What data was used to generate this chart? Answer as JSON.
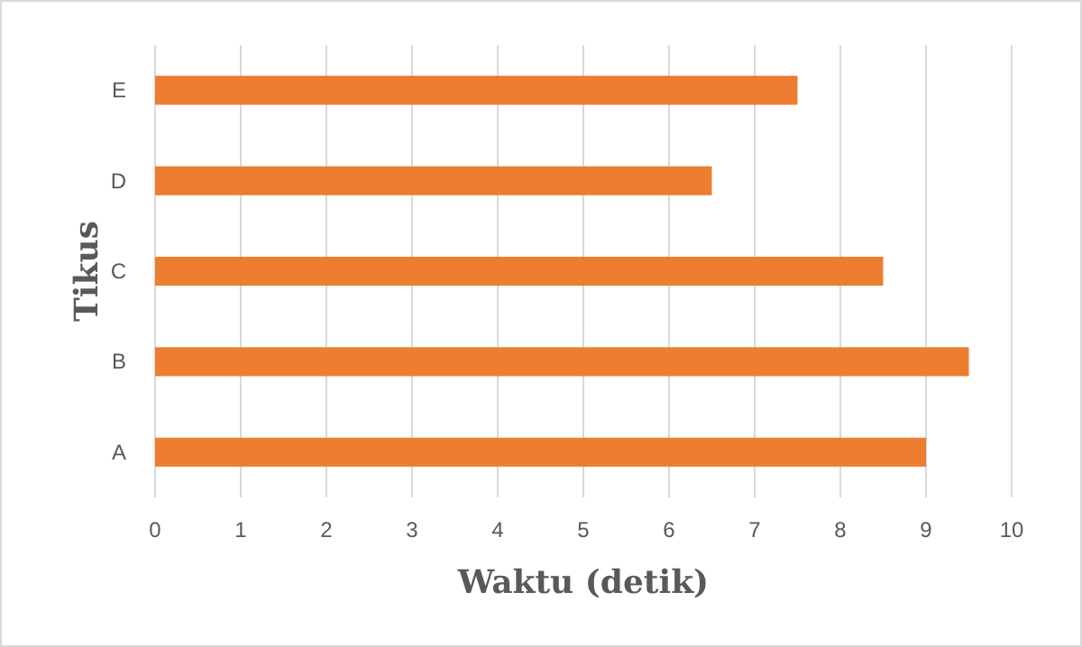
{
  "chart_data": {
    "type": "bar",
    "orientation": "horizontal",
    "xlabel": "Waktu (detik)",
    "ylabel": "Tikus",
    "categories": [
      "E",
      "D",
      "C",
      "B",
      "A"
    ],
    "values": [
      7.5,
      6.5,
      8.5,
      9.5,
      9
    ],
    "color": "#ed7d31",
    "xlim": [
      0,
      10
    ],
    "xticks": [
      0,
      1,
      2,
      3,
      4,
      5,
      6,
      7,
      8,
      9,
      10
    ],
    "grid": "x"
  }
}
